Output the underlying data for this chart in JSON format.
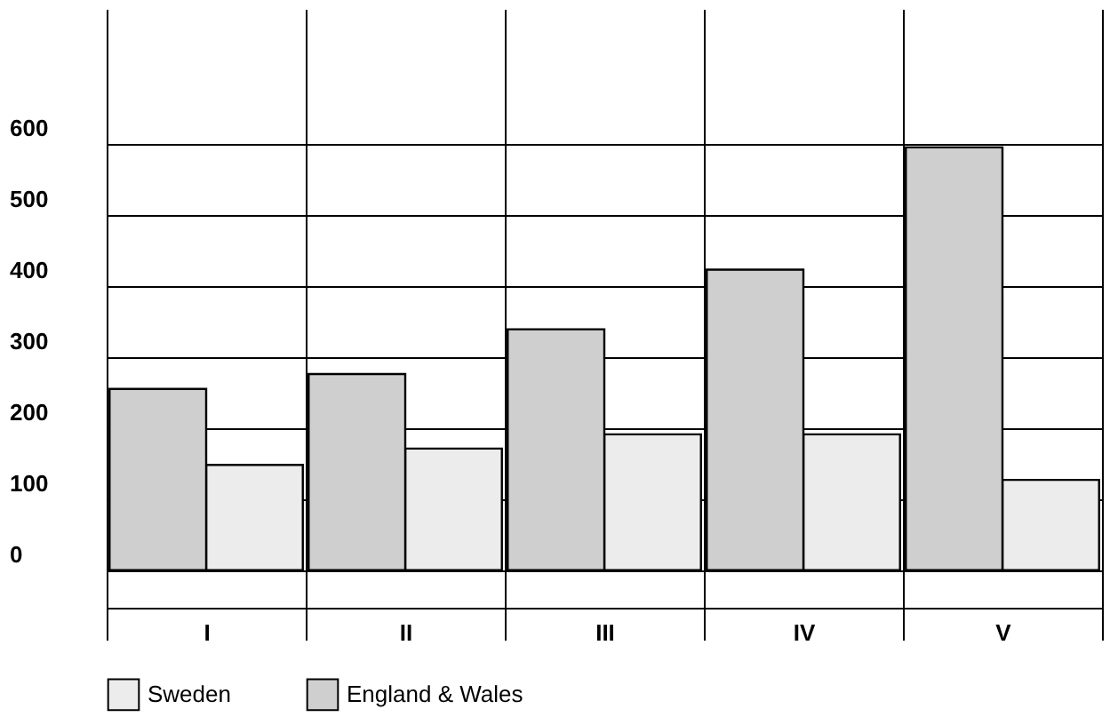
{
  "chart_data": {
    "type": "bar",
    "categories": [
      "I",
      "II",
      "III",
      "IV",
      "V"
    ],
    "series": [
      {
        "name": "Sweden",
        "color": "#ececec",
        "values": [
          148,
          171,
          191,
          191,
          127
        ]
      },
      {
        "name": "England & Wales",
        "color": "#cfcfcf",
        "values": [
          255,
          276,
          339,
          423,
          595
        ]
      }
    ],
    "ylim": [
      -53,
      790
    ],
    "yticks": [
      0,
      100,
      200,
      300,
      400,
      500,
      600
    ],
    "grid": true,
    "legend": "bottom"
  }
}
